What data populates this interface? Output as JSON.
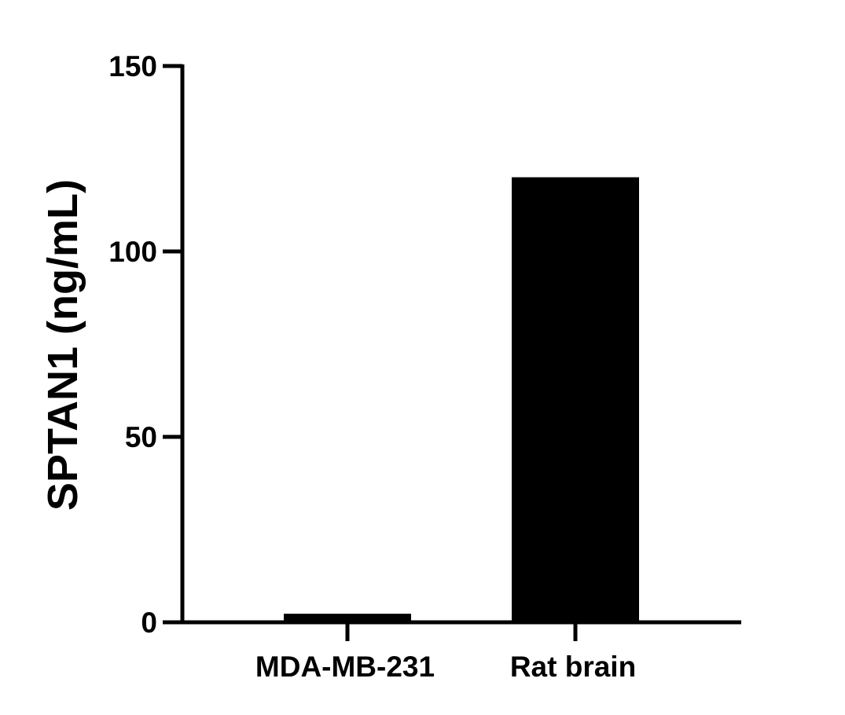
{
  "chart_data": {
    "type": "bar",
    "title": "",
    "xlabel": "",
    "ylabel": "SPTAN1 (ng/mL)",
    "categories": [
      "MDA-MB-231",
      "Rat brain"
    ],
    "values": [
      2.3,
      120
    ],
    "ylim": [
      0,
      150
    ],
    "yticks": [
      0,
      50,
      100,
      150
    ],
    "bar_color": "#000000",
    "axis_color": "#000000",
    "grid": false,
    "legend": "none"
  }
}
